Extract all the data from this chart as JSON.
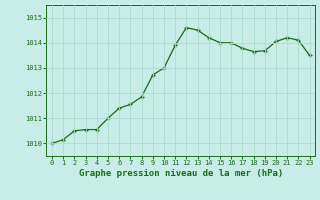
{
  "x": [
    0,
    1,
    2,
    3,
    4,
    5,
    6,
    7,
    8,
    9,
    10,
    11,
    12,
    13,
    14,
    15,
    16,
    17,
    18,
    19,
    20,
    21,
    22,
    23
  ],
  "y": [
    1010.0,
    1010.15,
    1010.5,
    1010.55,
    1010.55,
    1011.0,
    1011.4,
    1011.55,
    1011.85,
    1012.72,
    1013.0,
    1013.9,
    1014.6,
    1014.5,
    1014.2,
    1014.0,
    1014.0,
    1013.78,
    1013.65,
    1013.68,
    1014.05,
    1014.2,
    1014.1,
    1013.5
  ],
  "line_color": "#1a6b1a",
  "marker_color": "#1a6b1a",
  "bg_color": "#c8ede8",
  "grid_color": "#aaddcc",
  "xlabel": "Graphe pression niveau de la mer (hPa)",
  "xlabel_color": "#1a6b1a",
  "tick_color": "#1a6b1a",
  "ylim": [
    1009.5,
    1015.5
  ],
  "yticks": [
    1010,
    1011,
    1012,
    1013,
    1014,
    1015
  ],
  "xticks": [
    0,
    1,
    2,
    3,
    4,
    5,
    6,
    7,
    8,
    9,
    10,
    11,
    12,
    13,
    14,
    15,
    16,
    17,
    18,
    19,
    20,
    21,
    22,
    23
  ]
}
